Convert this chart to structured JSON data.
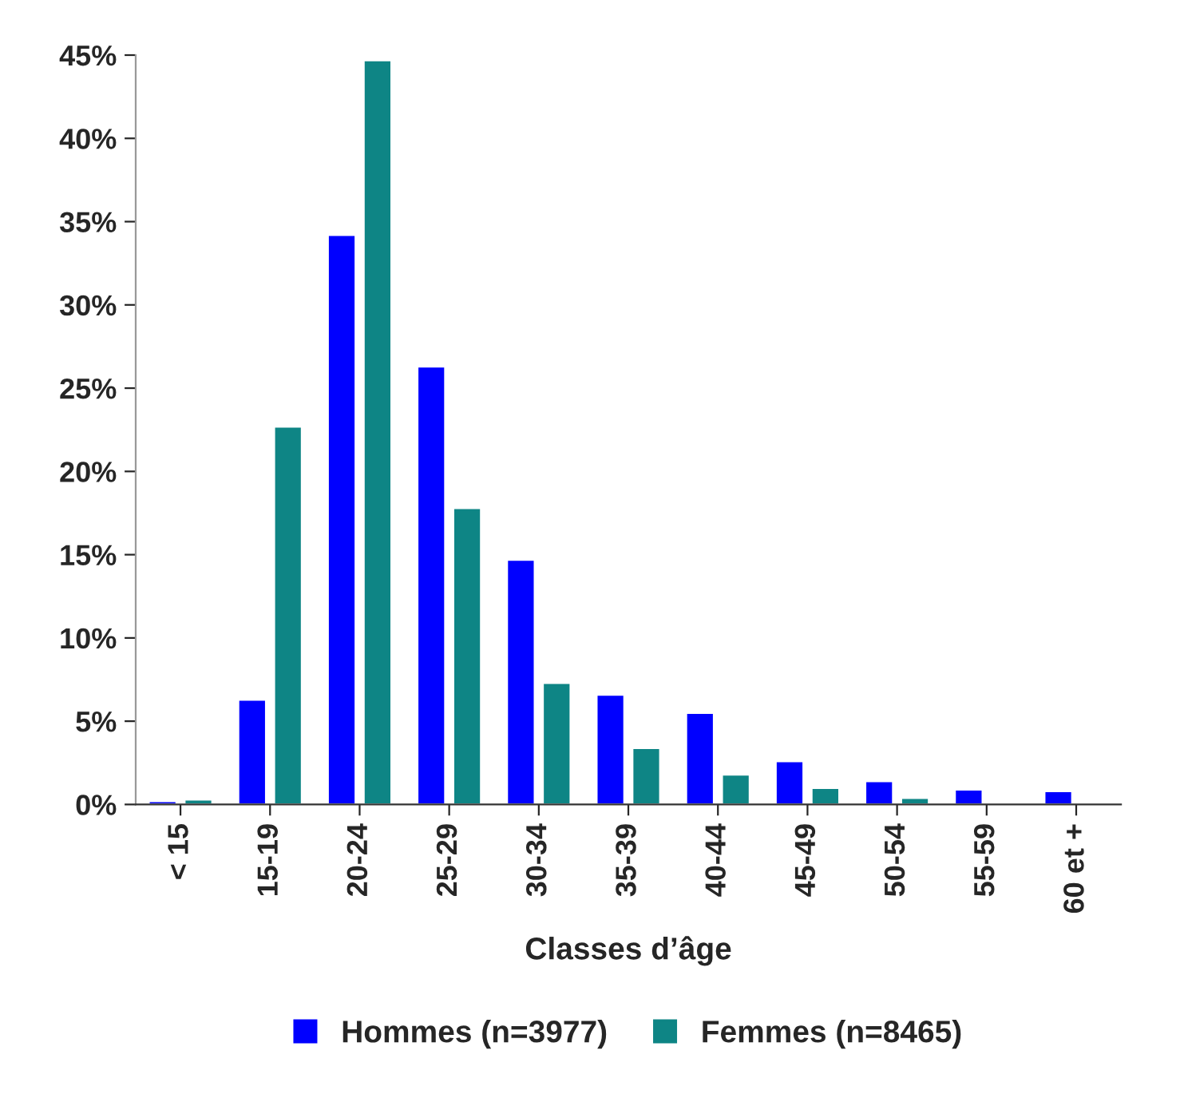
{
  "chart_data": {
    "type": "bar",
    "xlabel": "Classes d’âge",
    "categories": [
      "< 15",
      "15-19",
      "20-24",
      "25-29",
      "30-34",
      "35-39",
      "40-44",
      "45-49",
      "50-54",
      "55-59",
      "60 et +"
    ],
    "series": [
      {
        "name": "Hommes (n=3977)",
        "color": "#0000ff",
        "values": [
          0.2,
          6.3,
          34.2,
          26.3,
          14.7,
          6.6,
          5.5,
          2.6,
          1.4,
          0.9,
          0.8
        ]
      },
      {
        "name": "Femmes (n=8465)",
        "color": "#0e8585",
        "values": [
          0.3,
          22.7,
          44.7,
          17.8,
          7.3,
          3.4,
          1.8,
          1.0,
          0.4,
          0.1,
          0.1
        ]
      }
    ],
    "ylim": [
      0,
      45
    ],
    "yticks": [
      {
        "value": 0,
        "label": "0%"
      },
      {
        "value": 5,
        "label": "5%"
      },
      {
        "value": 10,
        "label": "10%"
      },
      {
        "value": 15,
        "label": "15%"
      },
      {
        "value": 20,
        "label": "20%"
      },
      {
        "value": 25,
        "label": "25%"
      },
      {
        "value": 30,
        "label": "30%"
      },
      {
        "value": 35,
        "label": "35%"
      },
      {
        "value": 40,
        "label": "40%"
      },
      {
        "value": 45,
        "label": "45%"
      }
    ],
    "grid": false,
    "legend": "bottom"
  }
}
